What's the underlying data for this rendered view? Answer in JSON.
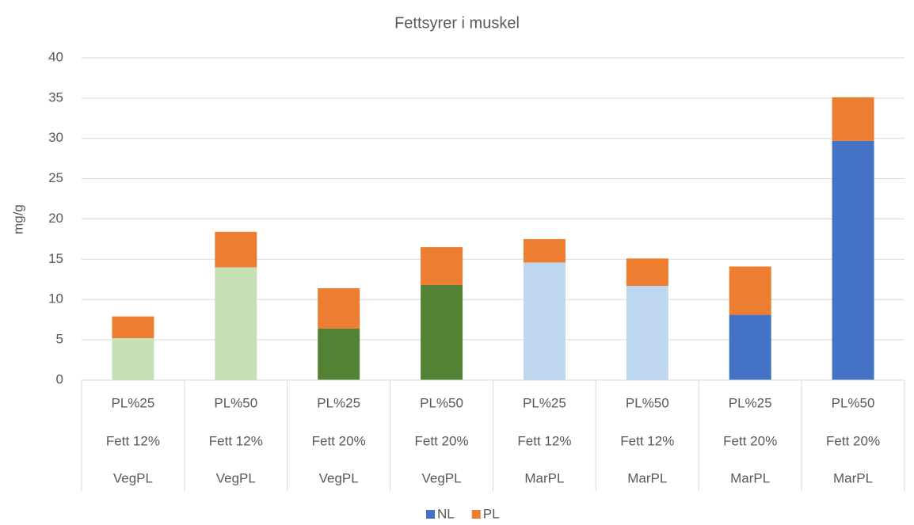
{
  "chart_data": {
    "type": "stacked_bar",
    "title": "Fettsyrer i muskel",
    "y_label": "mg/g",
    "category_levels": [
      [
        "PL%25",
        "PL%50",
        "PL%25",
        "PL%50",
        "PL%25",
        "PL%50",
        "PL%25",
        "PL%50"
      ],
      [
        "Fett 12%",
        "Fett 12%",
        "Fett 20%",
        "Fett 20%",
        "Fett 12%",
        "Fett 12%",
        "Fett 20%",
        "Fett 20%"
      ],
      [
        "VegPL",
        "VegPL",
        "VegPL",
        "VegPL",
        "MarPL",
        "MarPL",
        "MarPL",
        "MarPL"
      ]
    ],
    "series": [
      {
        "name": "NL",
        "color": "#4472c4",
        "colors": [
          "#c5e0b4",
          "#c5e0b4",
          "#548235",
          "#548235",
          "#bdd7ee",
          "#bdd7ee",
          "#4472c4",
          "#4472c4"
        ],
        "values": [
          5.2,
          14.0,
          6.4,
          11.8,
          14.6,
          11.7,
          8.1,
          29.7
        ]
      },
      {
        "name": "PL",
        "color": "#ed7d31",
        "values": [
          2.7,
          4.4,
          5.0,
          4.7,
          2.9,
          3.4,
          6.0,
          5.4
        ]
      }
    ],
    "ylim": [
      0,
      40
    ],
    "yticks": [
      0,
      5,
      10,
      15,
      20,
      25,
      30,
      35,
      40
    ],
    "grid": true,
    "legend": "bottom"
  }
}
